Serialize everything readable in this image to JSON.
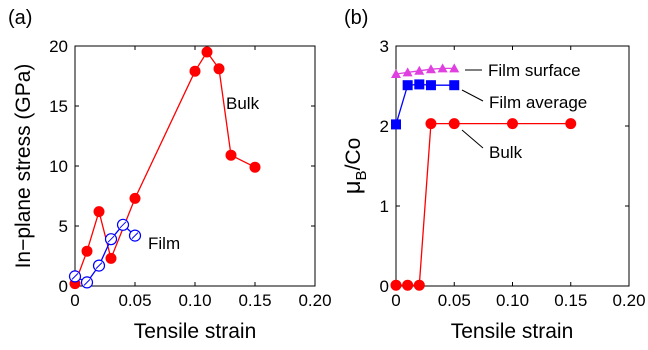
{
  "chart_data": [
    {
      "type": "line",
      "panel_label": "(a)",
      "xlabel": "Tensile strain",
      "ylabel": "In−plane stress (GPa)",
      "xlim": [
        0,
        0.2
      ],
      "ylim": [
        0,
        20
      ],
      "x_ticks": [
        "0",
        "0.05",
        "0.10",
        "0.15",
        "0.20"
      ],
      "y_ticks": [
        "0",
        "5",
        "10",
        "15",
        "20"
      ],
      "grid": false,
      "series": [
        {
          "name": "Bulk",
          "color": "#ff0000",
          "marker": "filled-circle",
          "x": [
            0,
            0.01,
            0.02,
            0.03,
            0.05,
            0.1,
            0.11,
            0.12,
            0.13,
            0.15
          ],
          "y": [
            0.2,
            2.9,
            6.2,
            2.3,
            7.3,
            17.9,
            19.5,
            18.1,
            10.9,
            9.9
          ]
        },
        {
          "name": "Film",
          "color": "#0000ff",
          "marker": "open-circle",
          "x": [
            0,
            0.01,
            0.02,
            0.03,
            0.04,
            0.05
          ],
          "y": [
            0.8,
            0.3,
            1.7,
            3.9,
            5.1,
            4.2
          ]
        }
      ]
    },
    {
      "type": "line",
      "panel_label": "(b)",
      "xlabel": "Tensile strain",
      "ylabel_main": "μ",
      "ylabel_sub": "B",
      "ylabel_rest": "/Co",
      "xlim": [
        0,
        0.2
      ],
      "ylim": [
        0,
        3
      ],
      "x_ticks": [
        "0",
        "0.05",
        "0.10",
        "0.15",
        "0.20"
      ],
      "y_ticks": [
        "0",
        "1",
        "2",
        "3"
      ],
      "grid": false,
      "series": [
        {
          "name": "Film surface",
          "color": "#e040e0",
          "marker": "filled-triangle",
          "x": [
            0,
            0.01,
            0.02,
            0.03,
            0.04,
            0.05
          ],
          "y": [
            2.65,
            2.67,
            2.69,
            2.71,
            2.72,
            2.72
          ]
        },
        {
          "name": "Film average",
          "color": "#0000ff",
          "marker": "filled-square",
          "x": [
            0,
            0.01,
            0.02,
            0.03,
            0.05
          ],
          "y": [
            2.02,
            2.51,
            2.52,
            2.51,
            2.51
          ]
        },
        {
          "name": "Bulk",
          "color": "#ff0000",
          "marker": "filled-circle",
          "x": [
            0,
            0.01,
            0.02,
            0.03,
            0.05,
            0.1,
            0.15
          ],
          "y": [
            0.01,
            0.01,
            0.01,
            2.03,
            2.03,
            2.03,
            2.03
          ]
        }
      ]
    }
  ]
}
